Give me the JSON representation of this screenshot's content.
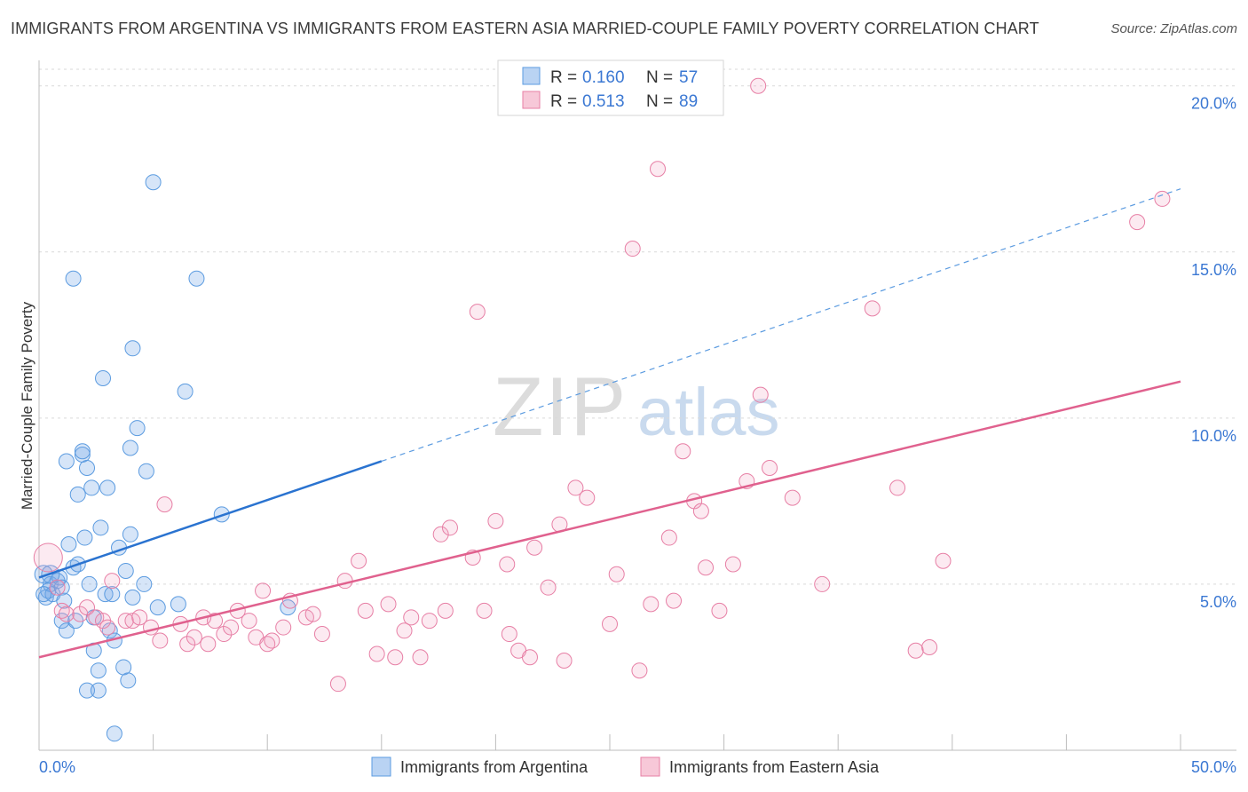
{
  "header": {
    "title": "IMMIGRANTS FROM ARGENTINA VS IMMIGRANTS FROM EASTERN ASIA MARRIED-COUPLE FAMILY POVERTY CORRELATION CHART",
    "source": "Source: ZipAtlas.com"
  },
  "watermark": {
    "zip": "ZIP",
    "atlas": "atlas"
  },
  "legend_top": {
    "rows": [
      {
        "r_label": "R =",
        "r_value": "0.160",
        "n_label": "N =",
        "n_value": "57"
      },
      {
        "r_label": "R =",
        "r_value": "0.513",
        "n_label": "N =",
        "n_value": "89"
      }
    ]
  },
  "chart_data": {
    "type": "scatter",
    "title": "IMMIGRANTS FROM ARGENTINA VS IMMIGRANTS FROM EASTERN ASIA MARRIED-COUPLE FAMILY POVERTY CORRELATION CHART",
    "xlabel": "",
    "ylabel": "Married-Couple Family Poverty",
    "xlim": [
      0,
      50
    ],
    "ylim": [
      0,
      20.5
    ],
    "x_tick_labels": [
      "0.0%",
      "50.0%"
    ],
    "y_ticks": [
      5,
      10,
      15,
      20
    ],
    "y_tick_labels": [
      "5.0%",
      "10.0%",
      "15.0%",
      "20.0%"
    ],
    "grid": true,
    "legend_position": "bottom-center",
    "colors": {
      "argentina": "#5b9be0",
      "eastern_asia": "#e77fa5",
      "argentina_line": "#2a73d0",
      "eastern_asia_line": "#e0618e",
      "accent_text": "#3b78d3"
    },
    "series": [
      {
        "name": "Immigrants from Argentina",
        "r": 0.16,
        "n": 57,
        "trend": {
          "x0": 0,
          "y0": 5.2,
          "x1": 15,
          "y1": 8.7,
          "dashed_to_x": 50,
          "dashed_to_y": 16.9
        },
        "points": [
          [
            0.2,
            5.3
          ],
          [
            0.3,
            4.6
          ],
          [
            0.4,
            4.8
          ],
          [
            0.5,
            5.0
          ],
          [
            0.6,
            4.7
          ],
          [
            0.8,
            5.1
          ],
          [
            0.9,
            5.2
          ],
          [
            1.0,
            4.9
          ],
          [
            1.0,
            3.9
          ],
          [
            1.1,
            4.5
          ],
          [
            1.2,
            3.6
          ],
          [
            1.2,
            8.7
          ],
          [
            1.3,
            6.2
          ],
          [
            1.5,
            5.5
          ],
          [
            1.5,
            14.2
          ],
          [
            1.6,
            3.9
          ],
          [
            1.7,
            5.6
          ],
          [
            1.7,
            7.7
          ],
          [
            1.9,
            8.9
          ],
          [
            1.9,
            9.0
          ],
          [
            2.0,
            6.4
          ],
          [
            2.1,
            8.5
          ],
          [
            2.1,
            1.8
          ],
          [
            2.2,
            5.0
          ],
          [
            2.3,
            7.9
          ],
          [
            2.4,
            4.0
          ],
          [
            2.4,
            3.0
          ],
          [
            2.6,
            1.8
          ],
          [
            2.6,
            2.4
          ],
          [
            2.7,
            6.7
          ],
          [
            2.8,
            11.2
          ],
          [
            2.9,
            4.7
          ],
          [
            3.0,
            7.9
          ],
          [
            3.1,
            3.6
          ],
          [
            3.2,
            4.7
          ],
          [
            3.3,
            0.5
          ],
          [
            3.3,
            3.3
          ],
          [
            3.5,
            6.1
          ],
          [
            3.7,
            2.5
          ],
          [
            3.8,
            5.4
          ],
          [
            3.9,
            2.1
          ],
          [
            4.0,
            6.5
          ],
          [
            4.0,
            9.1
          ],
          [
            4.1,
            4.6
          ],
          [
            4.1,
            12.1
          ],
          [
            4.3,
            9.7
          ],
          [
            4.6,
            5.0
          ],
          [
            4.7,
            8.4
          ],
          [
            5.0,
            17.1
          ],
          [
            5.2,
            4.3
          ],
          [
            6.1,
            4.4
          ],
          [
            6.4,
            10.8
          ],
          [
            6.9,
            14.2
          ],
          [
            8.0,
            7.1
          ],
          [
            10.9,
            4.3
          ],
          [
            0.2,
            4.7
          ],
          [
            0.5,
            5.3
          ]
        ]
      },
      {
        "name": "Immigrants from Eastern Asia",
        "r": 0.513,
        "n": 89,
        "trend": {
          "x0": 0,
          "y0": 2.8,
          "x1": 50,
          "y1": 11.1
        },
        "points": [
          [
            0.4,
            5.8
          ],
          [
            0.8,
            4.9
          ],
          [
            1.0,
            4.2
          ],
          [
            1.2,
            4.1
          ],
          [
            1.8,
            4.1
          ],
          [
            2.1,
            4.3
          ],
          [
            2.5,
            4.0
          ],
          [
            2.8,
            3.9
          ],
          [
            3.0,
            3.7
          ],
          [
            3.2,
            5.1
          ],
          [
            3.8,
            3.9
          ],
          [
            4.1,
            3.9
          ],
          [
            4.4,
            4.0
          ],
          [
            4.9,
            3.7
          ],
          [
            5.3,
            3.3
          ],
          [
            5.5,
            7.4
          ],
          [
            6.2,
            3.8
          ],
          [
            6.5,
            3.2
          ],
          [
            6.8,
            3.4
          ],
          [
            7.2,
            4.0
          ],
          [
            7.4,
            3.2
          ],
          [
            7.7,
            3.9
          ],
          [
            8.1,
            3.5
          ],
          [
            8.4,
            3.7
          ],
          [
            8.7,
            4.2
          ],
          [
            9.2,
            3.9
          ],
          [
            9.5,
            3.4
          ],
          [
            9.8,
            4.8
          ],
          [
            10.0,
            3.2
          ],
          [
            10.2,
            3.3
          ],
          [
            10.7,
            3.7
          ],
          [
            11.0,
            4.5
          ],
          [
            11.7,
            4.0
          ],
          [
            12.0,
            4.1
          ],
          [
            12.4,
            3.5
          ],
          [
            13.1,
            2.0
          ],
          [
            13.4,
            5.1
          ],
          [
            14.0,
            5.7
          ],
          [
            14.3,
            4.2
          ],
          [
            14.8,
            2.9
          ],
          [
            15.3,
            4.4
          ],
          [
            15.6,
            2.8
          ],
          [
            16.0,
            3.6
          ],
          [
            16.3,
            4.0
          ],
          [
            16.7,
            2.8
          ],
          [
            17.1,
            3.9
          ],
          [
            17.6,
            6.5
          ],
          [
            17.8,
            4.2
          ],
          [
            18.0,
            6.7
          ],
          [
            19.0,
            5.8
          ],
          [
            19.2,
            13.2
          ],
          [
            19.5,
            4.2
          ],
          [
            20.0,
            6.9
          ],
          [
            20.5,
            5.6
          ],
          [
            20.6,
            3.5
          ],
          [
            21.0,
            3.0
          ],
          [
            21.5,
            2.8
          ],
          [
            21.7,
            6.1
          ],
          [
            22.3,
            4.9
          ],
          [
            22.8,
            6.8
          ],
          [
            23.0,
            2.7
          ],
          [
            23.5,
            7.9
          ],
          [
            24.0,
            7.6
          ],
          [
            25.0,
            3.8
          ],
          [
            25.3,
            5.3
          ],
          [
            26.0,
            15.1
          ],
          [
            26.3,
            2.4
          ],
          [
            26.8,
            4.4
          ],
          [
            27.1,
            17.5
          ],
          [
            27.6,
            6.4
          ],
          [
            27.8,
            4.5
          ],
          [
            28.2,
            9.0
          ],
          [
            28.7,
            7.5
          ],
          [
            29.0,
            7.2
          ],
          [
            29.2,
            5.5
          ],
          [
            29.8,
            4.2
          ],
          [
            30.4,
            5.6
          ],
          [
            31.0,
            8.1
          ],
          [
            31.5,
            20.0
          ],
          [
            31.6,
            10.7
          ],
          [
            32.0,
            8.5
          ],
          [
            33.0,
            7.6
          ],
          [
            34.3,
            5.0
          ],
          [
            36.5,
            13.3
          ],
          [
            37.6,
            7.9
          ],
          [
            38.4,
            3.0
          ],
          [
            39.0,
            3.1
          ],
          [
            39.6,
            5.7
          ],
          [
            48.1,
            15.9
          ],
          [
            49.2,
            16.6
          ]
        ]
      }
    ]
  },
  "legend_bottom": {
    "items": [
      {
        "label": "Immigrants from Argentina"
      },
      {
        "label": "Immigrants from Eastern Asia"
      }
    ]
  }
}
